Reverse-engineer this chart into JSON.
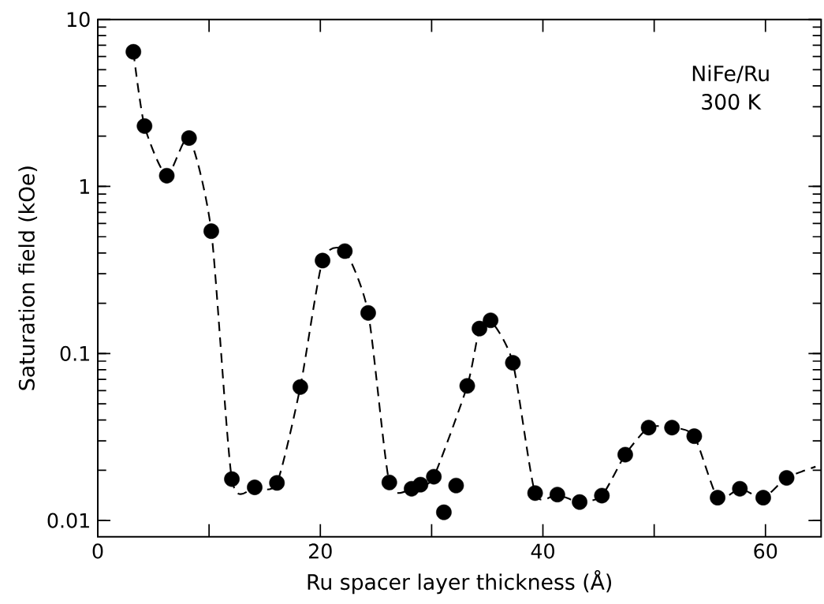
{
  "chart_data": {
    "type": "scatter",
    "xlabel": "Ru spacer layer thickness (Å)",
    "ylabel": "Saturation field (kOe)",
    "annotations": [
      "NiFe/Ru",
      "300 K"
    ],
    "log": "y",
    "xlim": [
      0,
      65
    ],
    "ylim": [
      0.008,
      10
    ],
    "xticks": [
      0,
      {
        "value": 10,
        "label": null
      },
      20,
      {
        "value": 30,
        "label": null
      },
      40,
      {
        "value": 50,
        "label": null
      },
      60
    ],
    "yticks": [
      0.01,
      0.1,
      1,
      10
    ],
    "series": [
      {
        "type": "line",
        "color": "#000000",
        "marker": "none",
        "line_style": "dashed",
        "x": [
          3.2,
          4.2,
          6.2,
          8.2,
          10.2,
          12.05,
          14.1,
          16.1,
          18.2,
          20.2,
          22.2,
          24.3,
          26.2,
          28.2,
          29.0,
          30.2,
          33.2,
          34.3,
          35.3,
          37.3,
          39.3,
          41.3,
          43.3,
          45.3,
          47.4,
          49.5,
          51.6,
          53.6,
          55.7,
          57.7,
          59.8,
          61.9,
          64.5
        ],
        "values": [
          6.4,
          2.3,
          1.16,
          1.95,
          0.54,
          0.0177,
          0.0158,
          0.0168,
          0.063,
          0.36,
          0.41,
          0.175,
          0.0169,
          0.0155,
          0.0164,
          0.0183,
          0.064,
          0.141,
          0.158,
          0.088,
          0.0146,
          0.0143,
          0.0129,
          0.0141,
          0.0248,
          0.036,
          0.036,
          0.032,
          0.0137,
          0.0155,
          0.0137,
          0.018,
          0.021
        ]
      },
      {
        "color": "#000000",
        "marker": "circle",
        "x": [
          3.2,
          4.2,
          6.2,
          8.2,
          10.2,
          12.05,
          14.1,
          16.1,
          18.2,
          20.2,
          22.2,
          24.3,
          26.2,
          28.2,
          29.0,
          30.2,
          31.1,
          32.2,
          33.2,
          34.3,
          35.3,
          37.3,
          39.3,
          41.3,
          43.3,
          45.3,
          47.4,
          49.5,
          51.6,
          53.6,
          55.7,
          57.7,
          59.8,
          61.9
        ],
        "values": [
          6.4,
          2.3,
          1.16,
          1.95,
          0.54,
          0.0177,
          0.0158,
          0.0168,
          0.063,
          0.36,
          0.41,
          0.175,
          0.0169,
          0.0155,
          0.0164,
          0.0183,
          0.0112,
          0.0162,
          0.064,
          0.141,
          0.158,
          0.088,
          0.0146,
          0.0143,
          0.0129,
          0.0141,
          0.0248,
          0.036,
          0.036,
          0.032,
          0.0137,
          0.0155,
          0.0137,
          0.018
        ]
      }
    ]
  }
}
